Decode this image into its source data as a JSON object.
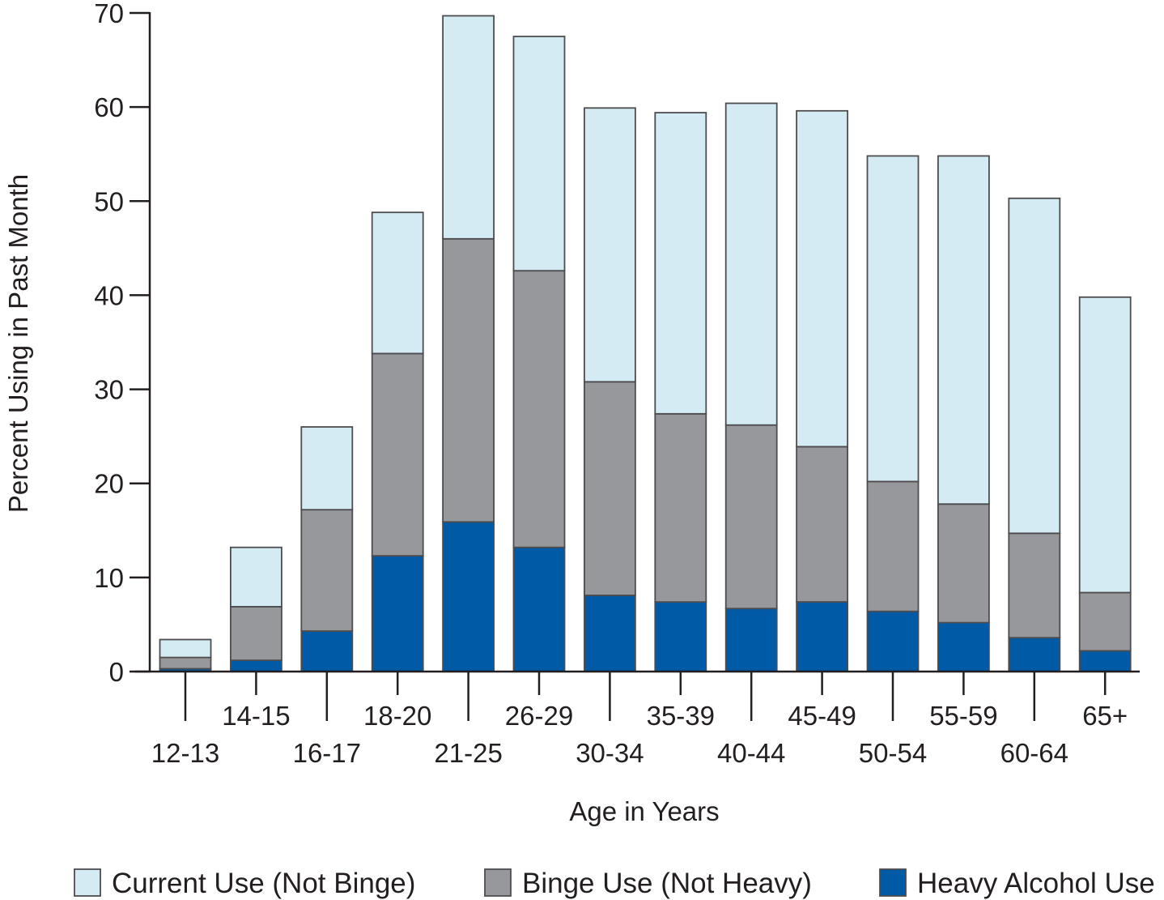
{
  "chart_data": {
    "type": "bar",
    "stacked": true,
    "categories": [
      "12-13",
      "14-15",
      "16-17",
      "18-20",
      "21-25",
      "26-29",
      "30-34",
      "35-39",
      "40-44",
      "45-49",
      "50-54",
      "55-59",
      "60-64",
      "65+"
    ],
    "series": [
      {
        "name": "Heavy Alcohol Use",
        "color": "#005aa5",
        "values": [
          0.3,
          1.2,
          4.3,
          12.3,
          15.9,
          13.2,
          8.1,
          7.4,
          6.7,
          7.4,
          6.4,
          5.2,
          3.6,
          2.2
        ]
      },
      {
        "name": "Binge Use (Not Heavy)",
        "color": "#97989c",
        "values": [
          1.2,
          5.7,
          12.9,
          21.5,
          30.1,
          29.4,
          22.7,
          20.0,
          19.5,
          16.5,
          13.8,
          12.6,
          11.1,
          6.2
        ]
      },
      {
        "name": "Current Use (Not Binge)",
        "color": "#d4ebf4",
        "values": [
          1.9,
          6.3,
          8.8,
          15.0,
          23.7,
          24.9,
          29.1,
          32.0,
          34.2,
          35.7,
          34.6,
          37.0,
          35.6,
          31.4
        ]
      }
    ],
    "totals": [
      3.4,
      13.2,
      26.0,
      48.8,
      69.7,
      67.5,
      59.9,
      59.4,
      60.4,
      59.6,
      54.8,
      54.8,
      50.3,
      39.8
    ],
    "xlabel": "Age in Years",
    "ylabel": "Percent Using in Past Month",
    "ylim": [
      0,
      70
    ],
    "yticks": [
      "0",
      "10",
      "20",
      "30",
      "40",
      "50",
      "60",
      "70"
    ],
    "grid": false,
    "legend_position": "bottom"
  },
  "legend": [
    {
      "label": "Current Use (Not Binge)",
      "color": "#d4ebf4"
    },
    {
      "label": "Binge Use (Not Heavy)",
      "color": "#97989c"
    },
    {
      "label": "Heavy Alcohol Use",
      "color": "#005aa5"
    }
  ]
}
